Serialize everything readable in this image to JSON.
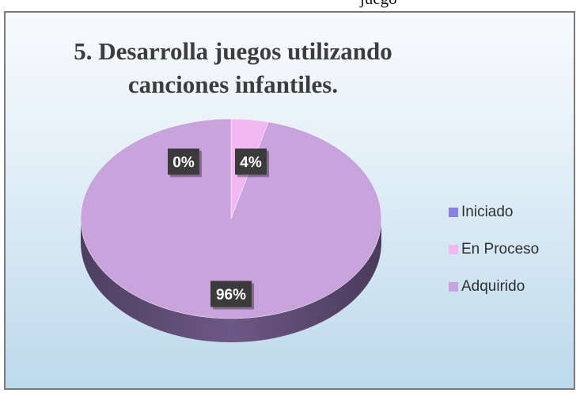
{
  "top_fragment": "juego",
  "chart_data": {
    "type": "pie",
    "title_line1": "5. Desarrolla juegos utilizando",
    "title_line2": "canciones infantiles.",
    "categories": [
      "Iniciado",
      "En Proceso",
      "Adquirido"
    ],
    "values": [
      0,
      4,
      96
    ],
    "data_labels": [
      "0%",
      "4%",
      "96%"
    ],
    "colors": [
      "#8b7fe3",
      "#f2b8f2",
      "#c9a3dc"
    ],
    "legend_position": "right"
  }
}
